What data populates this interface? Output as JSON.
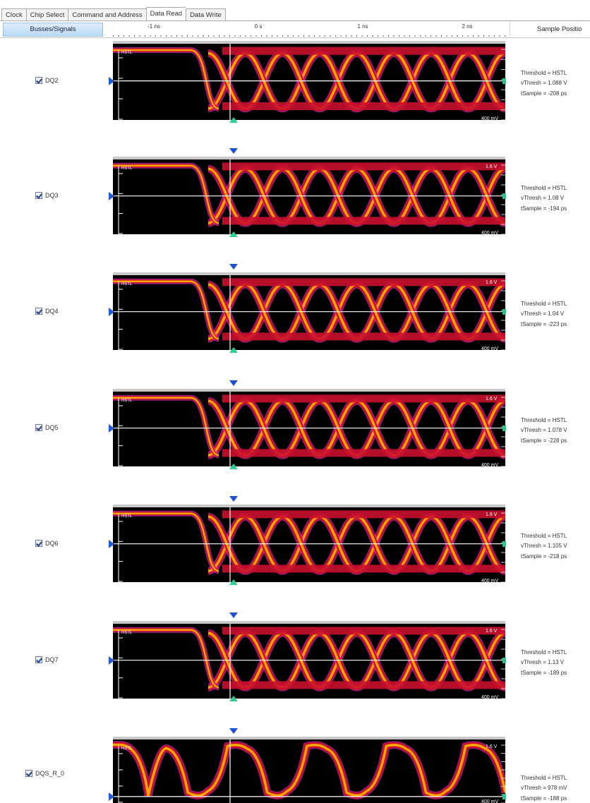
{
  "tabs": [
    {
      "label": "Clock",
      "active": false
    },
    {
      "label": "Chip Select",
      "active": false
    },
    {
      "label": "Command and Address",
      "active": false
    },
    {
      "label": "Data Read",
      "active": true
    },
    {
      "label": "Data Write",
      "active": false
    }
  ],
  "header": {
    "busses_label": "Busses/Signals",
    "sample_label": "Sample Positio",
    "time_ticks": [
      "-1 ns",
      "0 s",
      "1 ns",
      "2 ns"
    ]
  },
  "colors": {
    "trace_core": "#ffa500",
    "trace_mid": "#c8102e",
    "trace_outer": "#ff33cc",
    "threshold_line": "#ffffff",
    "marker_blue": "#1e5bdc",
    "marker_green": "#2fd08f"
  },
  "rows": [
    {
      "name": "DQ2",
      "checked": true,
      "top_label": "",
      "bottom_label": "400 mV",
      "hstl_label": "HSTL",
      "threshold": "Threshold = HSTL",
      "vthresh": "vThresh = 1.088 V",
      "tsample": "tSample = -208 ps"
    },
    {
      "name": "DQ3",
      "checked": true,
      "top_label": "1.6 V",
      "bottom_label": "400 mV",
      "hstl_label": "HSTL",
      "threshold": "Threshold = HSTL",
      "vthresh": "vThresh = 1.08 V",
      "tsample": "tSample = -194 ps"
    },
    {
      "name": "DQ4",
      "checked": true,
      "top_label": "1.6 V",
      "bottom_label": "400 mV",
      "hstl_label": "HSTL",
      "threshold": "Threshold = HSTL",
      "vthresh": "vThresh = 1.04 V",
      "tsample": "tSample = -223 ps"
    },
    {
      "name": "DQ5",
      "checked": true,
      "top_label": "1.6 V",
      "bottom_label": "400 mV",
      "hstl_label": "HSTL",
      "threshold": "Threshold = HSTL",
      "vthresh": "vThresh = 1.078 V",
      "tsample": "tSample = -228 ps"
    },
    {
      "name": "DQ6",
      "checked": true,
      "top_label": "1.6 V",
      "bottom_label": "400 mV",
      "hstl_label": "HSTL",
      "threshold": "Threshold = HSTL",
      "vthresh": "vThresh = 1.105 V",
      "tsample": "tSample = -218 ps"
    },
    {
      "name": "DQ7",
      "checked": true,
      "top_label": "1.6 V",
      "bottom_label": "400 mV",
      "hstl_label": "HSTL",
      "threshold": "Threshold = HSTL",
      "vthresh": "vThresh = 1.13 V",
      "tsample": "tSample = -189 ps"
    },
    {
      "name": "DQS_R_0",
      "checked": true,
      "top_label": "1.6 V",
      "bottom_label": "400 mV",
      "hstl_label": "HSTL",
      "threshold": "Threshold = HSTL",
      "vthresh": "vThresh = 978 mV",
      "tsample": "tSample = -188 ps"
    }
  ]
}
